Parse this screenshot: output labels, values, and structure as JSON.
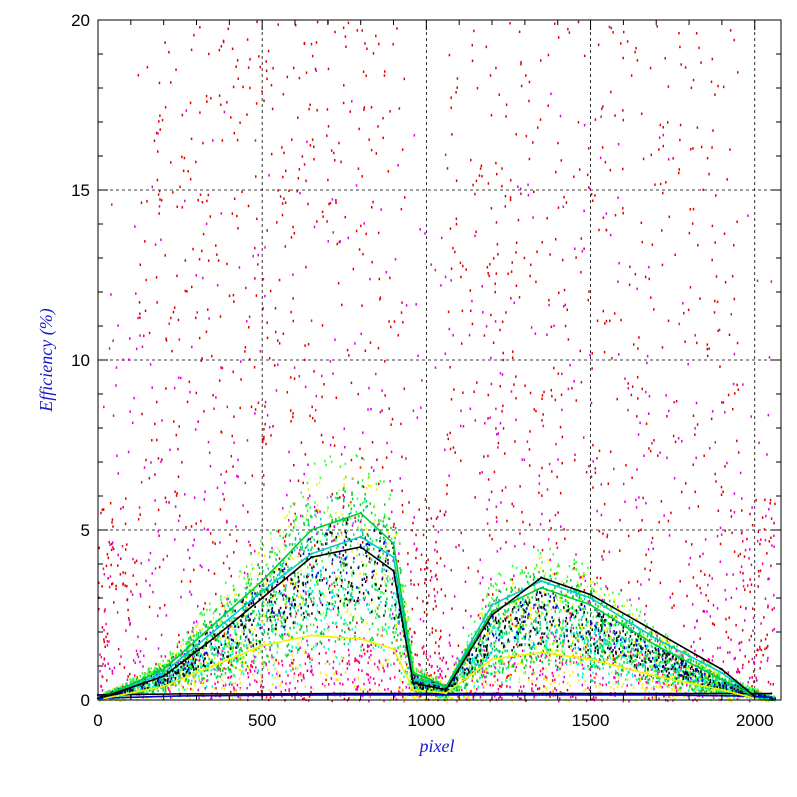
{
  "chart_data": {
    "type": "scatter",
    "title": "",
    "xlabel": "pixel",
    "ylabel": "Efficiency (%)",
    "xlim": [
      0,
      2080
    ],
    "ylim": [
      0,
      20
    ],
    "x_ticks": [
      0,
      500,
      1000,
      1500,
      2000
    ],
    "y_ticks": [
      0,
      5,
      10,
      15,
      20
    ],
    "x_tick_labels": [
      "0",
      "500",
      "1000",
      "1500",
      "2000"
    ],
    "y_tick_labels": [
      "0",
      "5",
      "10",
      "15",
      "20"
    ],
    "grid": true,
    "grid_style": "dashed",
    "legend": "none",
    "colors": {
      "axis_title": "#1a1acc",
      "red": "#dd0000",
      "magenta": "#dd00dd",
      "pink": "#ff0088",
      "yellow": "#f2f200",
      "green": "#00cc33",
      "lime": "#33ff33",
      "cyan": "#00cccc",
      "aqua": "#00ffcc",
      "blue": "#0000cc",
      "black": "#000000"
    },
    "series": [
      {
        "color": "black",
        "x": [
          0,
          250,
          500,
          750,
          950,
          1050,
          1300,
          1500,
          1700,
          1950,
          2050
        ],
        "y": [
          0.15,
          0.18,
          0.18,
          0.19,
          0.19,
          0.19,
          0.19,
          0.19,
          0.19,
          0.19,
          0.19
        ]
      },
      {
        "color": "blue",
        "x": [
          0,
          250,
          500,
          750,
          950,
          1050,
          1300,
          1500,
          1700,
          1950,
          2050
        ],
        "y": [
          0.05,
          0.12,
          0.14,
          0.15,
          0.15,
          0.15,
          0.15,
          0.15,
          0.15,
          0.12,
          0.08
        ]
      },
      {
        "color": "cyan",
        "x": [
          20,
          200,
          350,
          500,
          650,
          800,
          900,
          960,
          1060,
          1200,
          1350,
          1500,
          1700,
          1900,
          2000
        ],
        "y": [
          0.1,
          0.8,
          2.0,
          3.2,
          4.3,
          4.8,
          4.2,
          0.6,
          0.4,
          2.8,
          3.5,
          3.0,
          1.8,
          0.8,
          0.1
        ]
      },
      {
        "color": "green",
        "x": [
          20,
          200,
          350,
          500,
          650,
          800,
          900,
          960,
          1060,
          1200,
          1350,
          1500,
          1700,
          1900,
          2000
        ],
        "y": [
          0.1,
          0.9,
          2.2,
          3.5,
          5.0,
          5.5,
          4.6,
          0.8,
          0.4,
          2.6,
          3.3,
          2.8,
          1.6,
          0.6,
          0.1
        ]
      },
      {
        "color": "yellow",
        "x": [
          20,
          200,
          350,
          500,
          650,
          800,
          900,
          960,
          1060,
          1200,
          1350,
          1500,
          1700,
          1900,
          2000
        ],
        "y": [
          0.05,
          0.4,
          1.0,
          1.6,
          1.9,
          1.8,
          1.5,
          0.3,
          0.2,
          1.2,
          1.4,
          1.2,
          0.7,
          0.3,
          0.05
        ]
      },
      {
        "color": "black",
        "x": [
          20,
          200,
          350,
          500,
          650,
          800,
          900,
          960,
          1060,
          1200,
          1350,
          1500,
          1700,
          1900,
          2000
        ],
        "y": [
          0.1,
          0.7,
          1.8,
          3.0,
          4.2,
          4.5,
          3.8,
          0.5,
          0.3,
          2.5,
          3.6,
          3.1,
          2.0,
          0.9,
          0.1
        ]
      }
    ]
  }
}
